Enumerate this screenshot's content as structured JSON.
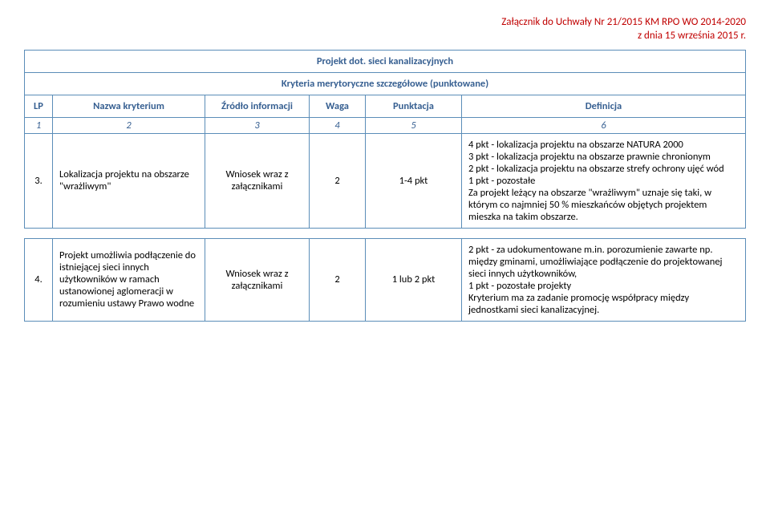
{
  "header": {
    "line1": "Załącznik do Uchwały Nr 21/2015 KM RPO WO 2014-2020",
    "line2": "z dnia 15 września 2015 r."
  },
  "table": {
    "projectTitle": "Projekt dot. sieci kanalizacyjnych",
    "criteriaTitle": "Kryteria merytoryczne szczegółowe (punktowane)",
    "headers": {
      "lp": "LP",
      "name": "Nazwa kryterium",
      "source": "Źródło informacji",
      "waga": "Waga",
      "punktacja": "Punktacja",
      "definicja": "Definicja"
    },
    "numbers": {
      "c1": "1",
      "c2": "2",
      "c3": "3",
      "c4": "4",
      "c5": "5",
      "c6": "6"
    },
    "rows": [
      {
        "lp": "3.",
        "name": "Lokalizacja projektu na obszarze \"wrażliwym\"",
        "source": "Wniosek wraz z załącznikami",
        "waga": "2",
        "punktacja": "1-4 pkt",
        "definicja": "4 pkt - lokalizacja projektu na obszarze NATURA 2000\n3 pkt - lokalizacja projektu na obszarze prawnie chronionym\n2 pkt - lokalizacja projektu na obszarze strefy ochrony ujęć wód\n1 pkt - pozostałe\nZa projekt leżący na obszarze \"wrażliwym\" uznaje się taki, w którym co najmniej 50 % mieszkańców objętych projektem mieszka na takim obszarze."
      },
      {
        "lp": "4.",
        "name": "Projekt umożliwia podłączenie do istniejącej sieci innych użytkowników w ramach ustanowionej aglomeracji w rozumieniu ustawy Prawo wodne",
        "source": "Wniosek wraz z załącznikami",
        "waga": "2",
        "punktacja": "1 lub 2 pkt",
        "definicja": "2 pkt - za udokumentowane m.in. porozumienie zawarte np. między gminami, umożliwiające podłączenie do projektowanej sieci innych użytkowników,\n1 pkt - pozostałe projekty\nKryterium ma za zadanie promocję współpracy między jednostkami sieci kanalizacyjnej."
      }
    ]
  },
  "colors": {
    "border": "#5b8db8",
    "headerText": "#365f91",
    "attachmentText": "#c00000"
  }
}
